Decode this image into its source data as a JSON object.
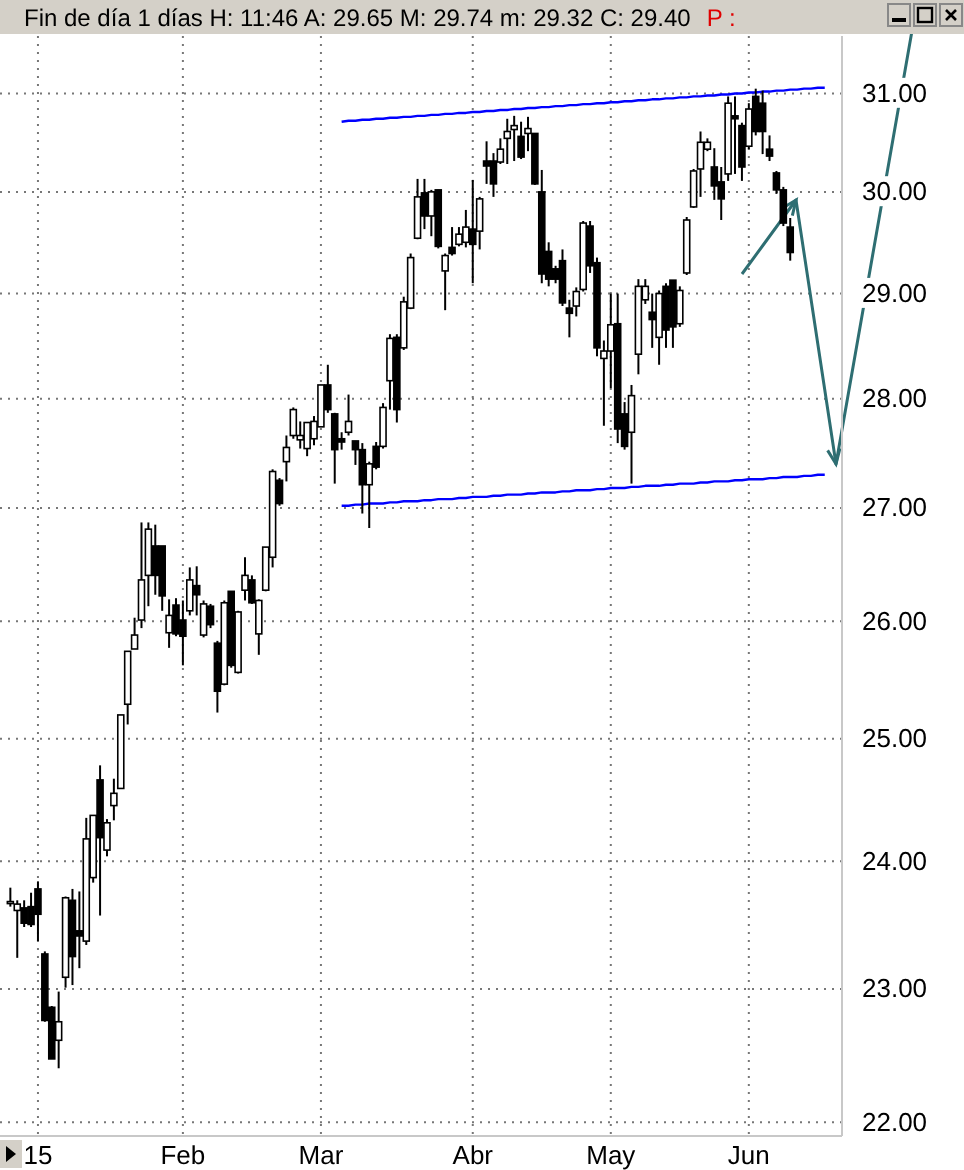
{
  "chart_data": {
    "type": "candlestick",
    "title": "Fin de día 1 días H: 11:46 A: 29.65 M: 29.74 m: 29.32 C: 29.40",
    "annotations": [
      "P :"
    ],
    "log": "y",
    "grid": true,
    "categories": [
      null,
      null,
      null,
      null,
      "15",
      null,
      null,
      null,
      null,
      null,
      null,
      null,
      null,
      null,
      null,
      null,
      null,
      null,
      null,
      null,
      null,
      null,
      null,
      null,
      null,
      "Feb",
      null,
      null,
      null,
      null,
      null,
      null,
      null,
      null,
      null,
      null,
      null,
      null,
      null,
      null,
      null,
      null,
      null,
      null,
      null,
      "Mar",
      null,
      null,
      null,
      null,
      null,
      null,
      null,
      null,
      null,
      null,
      null,
      null,
      null,
      null,
      null,
      null,
      null,
      null,
      null,
      null,
      null,
      "Abr",
      null,
      null,
      null,
      null,
      null,
      null,
      null,
      null,
      null,
      null,
      null,
      null,
      null,
      null,
      null,
      null,
      null,
      null,
      null,
      "May",
      null,
      null,
      null,
      null,
      null,
      null,
      null,
      null,
      null,
      null,
      null,
      null,
      null,
      null,
      null,
      null,
      null,
      null,
      null,
      "Jun",
      null,
      null,
      null,
      null,
      null,
      null,
      null,
      null,
      null,
      null,
      null,
      null
    ],
    "ylim": [
      21.9,
      31.6
    ],
    "yticks": [
      {
        "value": 22,
        "label": "22.00"
      },
      {
        "value": 23,
        "label": "23.00"
      },
      {
        "value": 24,
        "label": "24.00"
      },
      {
        "value": 25,
        "label": "25.00"
      },
      {
        "value": 26,
        "label": "26.00"
      },
      {
        "value": 27,
        "label": "27.00"
      },
      {
        "value": 28,
        "label": "28.00"
      },
      {
        "value": 29,
        "label": "29.00"
      },
      {
        "value": 30,
        "label": "30.00"
      },
      {
        "value": 31,
        "label": "31.00"
      }
    ],
    "ohlc": [
      [
        23.68,
        23.79,
        23.64,
        23.68
      ],
      [
        23.61,
        23.69,
        23.24,
        23.66
      ],
      [
        23.63,
        23.69,
        23.48,
        23.51
      ],
      [
        23.64,
        23.75,
        23.48,
        23.5
      ],
      [
        23.78,
        23.84,
        23.37,
        23.58
      ],
      [
        23.27,
        23.29,
        22.75,
        22.76
      ],
      [
        22.86,
        22.87,
        22.47,
        22.47
      ],
      [
        22.61,
        22.98,
        22.4,
        22.75
      ],
      [
        23.09,
        23.72,
        23.01,
        23.71
      ],
      [
        23.69,
        23.78,
        23.03,
        23.25
      ],
      [
        23.45,
        23.76,
        23.16,
        23.41
      ],
      [
        23.37,
        24.35,
        23.34,
        24.18
      ],
      [
        23.87,
        24.37,
        23.83,
        24.37
      ],
      [
        24.66,
        24.78,
        23.57,
        24.19
      ],
      [
        24.09,
        24.34,
        24.04,
        24.31
      ],
      [
        24.45,
        24.67,
        24.33,
        24.55
      ],
      [
        24.59,
        25.2,
        24.59,
        25.2
      ],
      [
        25.29,
        25.74,
        25.12,
        25.74
      ],
      [
        25.76,
        26.03,
        25.76,
        25.88
      ],
      [
        26.01,
        26.87,
        25.94,
        26.36
      ],
      [
        26.4,
        26.87,
        26.13,
        26.81
      ],
      [
        26.66,
        26.85,
        26.23,
        26.4
      ],
      [
        26.66,
        26.66,
        26.09,
        26.22
      ],
      [
        25.9,
        26.19,
        25.77,
        26.05
      ],
      [
        26.14,
        26.2,
        25.87,
        25.89
      ],
      [
        26.01,
        26.18,
        25.62,
        25.87
      ],
      [
        26.09,
        26.47,
        26.05,
        26.36
      ],
      [
        26.31,
        26.48,
        26.05,
        26.23
      ],
      [
        25.88,
        26.18,
        25.86,
        26.15
      ],
      [
        26.13,
        26.15,
        25.94,
        25.97
      ],
      [
        25.81,
        25.83,
        25.22,
        25.4
      ],
      [
        25.46,
        26.18,
        25.45,
        26.16
      ],
      [
        26.26,
        26.26,
        25.6,
        25.62
      ],
      [
        25.56,
        26.09,
        25.55,
        26.08
      ],
      [
        26.27,
        26.56,
        26.18,
        26.4
      ],
      [
        26.36,
        26.4,
        26.15,
        26.16
      ],
      [
        25.89,
        26.19,
        25.71,
        26.18
      ],
      [
        26.27,
        26.65,
        26.26,
        26.65
      ],
      [
        26.56,
        27.35,
        26.47,
        27.33
      ],
      [
        27.25,
        27.27,
        27.02,
        27.04
      ],
      [
        27.42,
        27.66,
        27.24,
        27.55
      ],
      [
        27.66,
        27.92,
        27.63,
        27.9
      ],
      [
        27.62,
        27.79,
        27.54,
        27.66
      ],
      [
        27.54,
        27.78,
        27.47,
        27.78
      ],
      [
        27.63,
        27.84,
        27.57,
        27.79
      ],
      [
        27.74,
        28.13,
        27.74,
        28.13
      ],
      [
        28.13,
        28.32,
        27.87,
        27.9
      ],
      [
        27.86,
        27.87,
        27.22,
        27.53
      ],
      [
        27.63,
        27.69,
        27.53,
        27.6
      ],
      [
        27.69,
        28.04,
        27.66,
        27.79
      ],
      [
        27.61,
        27.61,
        27.39,
        27.53
      ],
      [
        27.53,
        27.59,
        26.95,
        27.21
      ],
      [
        27.21,
        27.42,
        26.82,
        27.4
      ],
      [
        27.56,
        27.6,
        27.35,
        27.37
      ],
      [
        27.56,
        27.96,
        27.54,
        27.92
      ],
      [
        28.17,
        28.61,
        27.9,
        28.57
      ],
      [
        28.58,
        28.61,
        27.78,
        27.9
      ],
      [
        28.48,
        28.97,
        28.46,
        28.92
      ],
      [
        28.86,
        29.39,
        28.85,
        29.35
      ],
      [
        29.54,
        30.13,
        29.53,
        29.95
      ],
      [
        29.99,
        30.13,
        29.63,
        29.76
      ],
      [
        29.76,
        30.02,
        29.56,
        30.0
      ],
      [
        30.02,
        30.02,
        29.44,
        29.46
      ],
      [
        29.22,
        29.39,
        28.84,
        29.37
      ],
      [
        29.45,
        29.65,
        29.37,
        29.39
      ],
      [
        29.48,
        29.65,
        29.46,
        29.58
      ],
      [
        29.5,
        29.82,
        29.45,
        29.65
      ],
      [
        29.63,
        30.12,
        29.1,
        29.48
      ],
      [
        29.61,
        29.95,
        29.43,
        29.93
      ],
      [
        30.31,
        30.51,
        30.08,
        30.26
      ],
      [
        30.31,
        30.39,
        29.95,
        30.08
      ],
      [
        30.3,
        30.54,
        30.28,
        30.43
      ],
      [
        30.54,
        30.74,
        30.28,
        30.61
      ],
      [
        30.63,
        30.77,
        30.31,
        30.67
      ],
      [
        30.56,
        30.71,
        30.33,
        30.35
      ],
      [
        30.59,
        30.76,
        30.41,
        30.64
      ],
      [
        30.59,
        30.59,
        30.07,
        30.08
      ],
      [
        30.0,
        30.22,
        29.1,
        29.19
      ],
      [
        29.41,
        29.5,
        29.07,
        29.14
      ],
      [
        29.24,
        29.27,
        29.1,
        29.14
      ],
      [
        29.32,
        29.43,
        28.88,
        28.91
      ],
      [
        28.86,
        28.94,
        28.58,
        28.81
      ],
      [
        28.88,
        29.06,
        28.78,
        29.02
      ],
      [
        29.04,
        29.71,
        29.02,
        29.69
      ],
      [
        29.66,
        29.71,
        29.2,
        29.27
      ],
      [
        29.3,
        29.35,
        28.4,
        28.48
      ],
      [
        28.38,
        28.55,
        27.75,
        28.45
      ],
      [
        28.45,
        29.0,
        28.1,
        28.7
      ],
      [
        28.71,
        29.0,
        27.59,
        27.72
      ],
      [
        27.86,
        27.97,
        27.53,
        27.56
      ],
      [
        27.69,
        28.13,
        27.22,
        28.03
      ],
      [
        28.42,
        29.14,
        28.23,
        29.07
      ],
      [
        28.94,
        29.14,
        28.9,
        29.07
      ],
      [
        28.82,
        29.0,
        28.48,
        28.75
      ],
      [
        28.58,
        29.03,
        28.32,
        29.0
      ],
      [
        29.07,
        29.1,
        28.48,
        28.65
      ],
      [
        29.13,
        29.13,
        28.48,
        28.68
      ],
      [
        28.71,
        29.07,
        28.68,
        29.03
      ],
      [
        29.2,
        29.75,
        29.18,
        29.72
      ],
      [
        29.85,
        30.23,
        29.84,
        30.21
      ],
      [
        30.23,
        30.61,
        29.95,
        30.5
      ],
      [
        30.43,
        30.54,
        30.41,
        30.5
      ],
      [
        30.25,
        30.44,
        29.92,
        30.06
      ],
      [
        30.1,
        30.25,
        29.72,
        29.93
      ],
      [
        30.18,
        30.97,
        30.11,
        30.9
      ],
      [
        30.77,
        30.97,
        30.18,
        30.74
      ],
      [
        30.67,
        30.7,
        30.11,
        30.25
      ],
      [
        30.46,
        30.9,
        30.43,
        30.84
      ],
      [
        30.97,
        31.05,
        30.57,
        30.61
      ],
      [
        30.9,
        31.03,
        30.38,
        30.61
      ],
      [
        30.43,
        30.57,
        30.31,
        30.36
      ],
      [
        30.19,
        30.21,
        29.98,
        30.02
      ],
      [
        30.02,
        30.05,
        29.66,
        29.69
      ],
      [
        29.65,
        29.74,
        29.32,
        29.4
      ],
      null,
      null,
      null,
      null,
      null,
      null
    ],
    "series": [
      {
        "type": "line",
        "color": "#0000ff",
        "values": [
          null,
          null,
          null,
          null,
          null,
          null,
          null,
          null,
          null,
          null,
          null,
          null,
          null,
          null,
          null,
          null,
          null,
          null,
          null,
          null,
          null,
          null,
          null,
          null,
          null,
          null,
          null,
          null,
          null,
          null,
          null,
          null,
          null,
          null,
          null,
          null,
          null,
          null,
          null,
          null,
          null,
          null,
          null,
          null,
          null,
          null,
          null,
          null,
          30.71,
          30.72,
          30.72,
          30.73,
          30.73,
          30.74,
          30.74,
          30.75,
          30.75,
          30.76,
          30.76,
          30.77,
          30.77,
          30.78,
          30.78,
          30.79,
          30.79,
          30.8,
          30.8,
          30.81,
          30.81,
          30.82,
          30.82,
          30.83,
          30.83,
          30.84,
          30.84,
          30.85,
          30.85,
          30.86,
          30.86,
          30.87,
          30.87,
          30.88,
          30.88,
          30.89,
          30.89,
          30.9,
          30.9,
          30.91,
          30.91,
          30.92,
          30.92,
          30.93,
          30.93,
          30.94,
          30.94,
          30.95,
          30.95,
          30.96,
          30.96,
          30.97,
          30.97,
          30.98,
          30.98,
          30.99,
          30.99,
          31.0,
          31.0,
          31.01,
          31.01,
          31.02,
          31.02,
          31.03,
          31.03,
          31.04,
          31.04,
          31.05,
          31.05,
          31.06,
          31.06,
          null
        ]
      },
      {
        "type": "line",
        "color": "#0000ff",
        "values": [
          null,
          null,
          null,
          null,
          null,
          null,
          null,
          null,
          null,
          null,
          null,
          null,
          null,
          null,
          null,
          null,
          null,
          null,
          null,
          null,
          null,
          null,
          null,
          null,
          null,
          null,
          null,
          null,
          null,
          null,
          null,
          null,
          null,
          null,
          null,
          null,
          null,
          null,
          null,
          null,
          null,
          null,
          null,
          null,
          null,
          null,
          null,
          null,
          27.02,
          27.02,
          27.03,
          27.03,
          27.04,
          27.04,
          27.04,
          27.05,
          27.05,
          27.06,
          27.06,
          27.06,
          27.07,
          27.07,
          27.08,
          27.08,
          27.08,
          27.09,
          27.09,
          27.1,
          27.1,
          27.1,
          27.11,
          27.11,
          27.12,
          27.12,
          27.12,
          27.13,
          27.13,
          27.14,
          27.14,
          27.14,
          27.15,
          27.15,
          27.16,
          27.16,
          27.16,
          27.17,
          27.17,
          27.18,
          27.18,
          27.18,
          27.19,
          27.19,
          27.2,
          27.2,
          27.2,
          27.21,
          27.21,
          27.22,
          27.22,
          27.22,
          27.23,
          27.23,
          27.24,
          27.24,
          27.24,
          27.25,
          27.25,
          27.26,
          27.26,
          27.26,
          27.27,
          27.27,
          27.28,
          27.28,
          27.28,
          27.29,
          27.29,
          27.3,
          27.3,
          null
        ]
      }
    ]
  }
}
